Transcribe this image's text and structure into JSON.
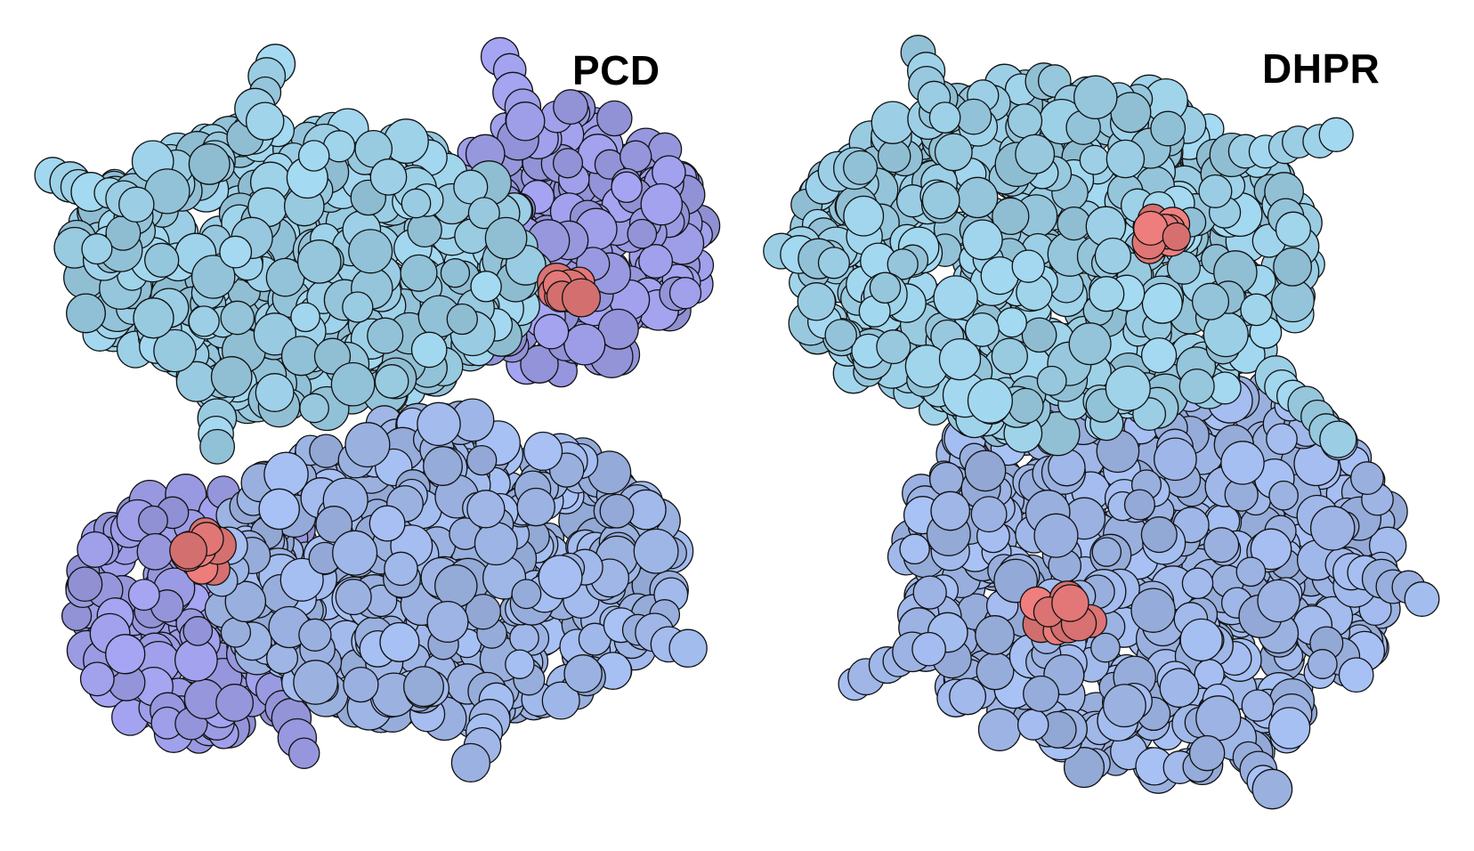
{
  "structures": [
    {
      "name": "PCD",
      "subunits": [
        {
          "color": "#a4daf2"
        },
        {
          "color": "#a5a5f3"
        },
        {
          "color": "#a9c2f6"
        }
      ],
      "ligand_color": "#f27f7f",
      "ligand_count": 2
    },
    {
      "name": "DHPR",
      "subunits": [
        {
          "color": "#a4daf2"
        },
        {
          "color": "#a9c2f6"
        }
      ],
      "ligand_color": "#f27f7f",
      "ligand_count": 2
    }
  ],
  "colors": {
    "background": "#ffffff",
    "outline": "#111111",
    "text": "#000000"
  }
}
